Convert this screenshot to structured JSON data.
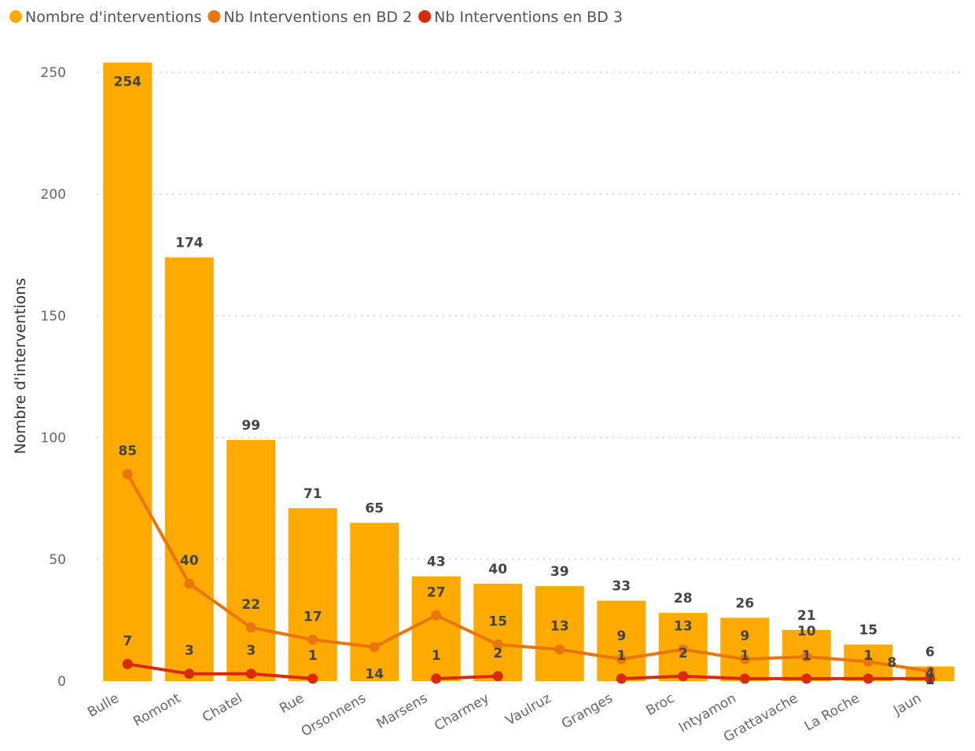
{
  "chart_data": {
    "type": "bar",
    "title": "",
    "xlabel": "",
    "ylabel": "Nombre d'interventions",
    "ylim": [
      0,
      260
    ],
    "yticks": [
      0,
      50,
      100,
      150,
      200,
      250
    ],
    "grid": true,
    "legend_position": "top-left",
    "categories": [
      "Bulle",
      "Romont",
      "Chatel",
      "Rue",
      "Orsonnens",
      "Marsens",
      "Charmey",
      "Vaulruz",
      "Granges",
      "Broc",
      "Intyamon",
      "Grattavache",
      "La Roche",
      "Jaun"
    ],
    "series": [
      {
        "name": "Nombre d'interventions",
        "kind": "bar",
        "color": "#FFAA00",
        "values": [
          254,
          174,
          99,
          71,
          65,
          43,
          40,
          39,
          33,
          28,
          26,
          21,
          15,
          6
        ]
      },
      {
        "name": "Nb Interventions en BD 2",
        "kind": "line",
        "color": "#E8760A",
        "values": [
          85,
          40,
          22,
          17,
          14,
          27,
          15,
          13,
          9,
          13,
          9,
          10,
          8,
          4
        ]
      },
      {
        "name": "Nb Interventions en BD 3",
        "kind": "line",
        "color": "#D92B0A",
        "values": [
          7,
          3,
          3,
          1,
          null,
          1,
          2,
          null,
          1,
          2,
          1,
          1,
          1,
          1
        ]
      }
    ]
  }
}
